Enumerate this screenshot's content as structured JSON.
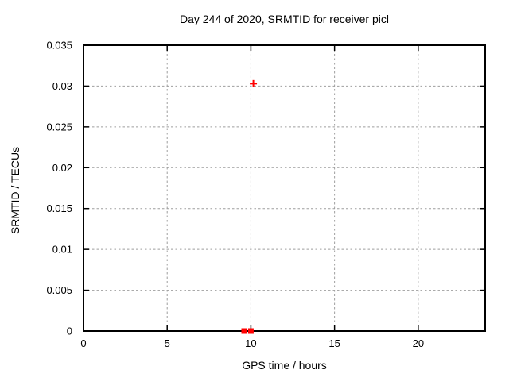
{
  "chart_data": {
    "type": "scatter",
    "title": "Day 244 of 2020, SRMTID for receiver picl",
    "xlabel": "GPS time / hours",
    "ylabel": "SRMTID / TECUs",
    "xlim": [
      0,
      24
    ],
    "ylim": [
      0,
      0.035
    ],
    "xticks": {
      "values": [
        0,
        5,
        10,
        15,
        20
      ],
      "labels": [
        "0",
        "5",
        "10",
        "15",
        "20"
      ]
    },
    "yticks": {
      "values": [
        0,
        0.005,
        0.01,
        0.015,
        0.02,
        0.025,
        0.03,
        0.035
      ],
      "labels": [
        "0",
        "0.005",
        "0.01",
        "0.015",
        "0.02",
        "0.025",
        "0.03",
        "0.035"
      ]
    },
    "grid": true,
    "legend": "none",
    "series": [
      {
        "name": "plus-marker-points",
        "marker": "plus",
        "color": "#ff0000",
        "points": [
          {
            "x": 10.15,
            "y": 0.0303
          }
        ]
      },
      {
        "name": "square-marker-points",
        "marker": "filled-square",
        "color": "#ff0000",
        "points": [
          {
            "x": 9.6,
            "y": 0.0
          },
          {
            "x": 10.0,
            "y": 0.0
          }
        ]
      }
    ],
    "colors": {
      "background": "#ffffff",
      "border": "#000000",
      "grid": "#9e9e9e",
      "text": "#000000"
    }
  }
}
